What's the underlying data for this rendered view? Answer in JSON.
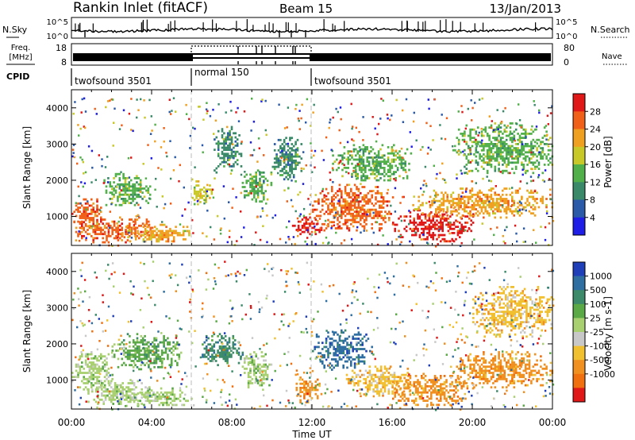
{
  "header": {
    "station": "Rankin Inlet (fitACF)",
    "beam": "Beam 15",
    "date": "13/Jan/2013"
  },
  "strips": {
    "nsky_label": "N.Sky",
    "nsky_ticks": [
      "10^5",
      "10^0"
    ],
    "nsearch_label": "N.Search",
    "nsearch_ticks": [
      "10^5",
      "10^0"
    ],
    "freq_label_line1": "Freq.",
    "freq_label_line2": "[MHz]",
    "freq_ticks": [
      "18",
      "8"
    ],
    "nave_label": "Nave",
    "nave_ticks": [
      "80",
      "0"
    ],
    "cpid_label": "CPID",
    "cpid_segments": [
      {
        "label": "twofsound 3501",
        "start_hour": 0,
        "end_hour": 6
      },
      {
        "label": "normal 150",
        "start_hour": 6,
        "end_hour": 12
      },
      {
        "label": "twofsound 3501",
        "start_hour": 12,
        "end_hour": 24
      }
    ]
  },
  "axes": {
    "ylabel": "Slant Range [km]",
    "yticks": [
      "1000",
      "2000",
      "3000",
      "4000"
    ],
    "xlabel": "Time UT",
    "xticks": [
      "00:00",
      "04:00",
      "08:00",
      "12:00",
      "16:00",
      "20:00",
      "00:00"
    ]
  },
  "colorbars": {
    "power": {
      "label": "Power [dB]",
      "ticks": [
        "4",
        "8",
        "12",
        "16",
        "20",
        "24",
        "28"
      ],
      "colors": [
        "#1e1ee6",
        "#2a5aa8",
        "#3a8a6a",
        "#52b04a",
        "#c8c828",
        "#f0a020",
        "#f06018",
        "#e01818"
      ]
    },
    "velocity": {
      "label": "Velocity [m s-1]",
      "ticks": [
        "1000",
        "500",
        "100",
        "25",
        "-25",
        "-100",
        "-500",
        "-1000"
      ],
      "colors": [
        "#1f3fb8",
        "#2f6ea0",
        "#3c8a6a",
        "#5aa846",
        "#a8d070",
        "#c8c8c8",
        "#f0c030",
        "#f09020",
        "#f07010",
        "#e01818"
      ]
    }
  },
  "chart_data": [
    {
      "type": "heatmap",
      "title": "Power",
      "xlabel": "Time UT",
      "ylabel": "Slant Range [km]",
      "xlim": [
        0,
        24
      ],
      "ylim": [
        200,
        4500
      ],
      "clim": [
        0,
        30
      ],
      "colorbar_label": "Power [dB]",
      "regions": [
        {
          "t": [
            0,
            1.6
          ],
          "r": [
            700,
            1500
          ],
          "value": 24
        },
        {
          "t": [
            0,
            4
          ],
          "r": [
            300,
            1000
          ],
          "value": 26
        },
        {
          "t": [
            1.5,
            4
          ],
          "r": [
            1300,
            2200
          ],
          "value": 14
        },
        {
          "t": [
            2.5,
            6
          ],
          "r": [
            300,
            800
          ],
          "value": 22
        },
        {
          "t": [
            6,
            7
          ],
          "r": [
            1300,
            2000
          ],
          "value": 18
        },
        {
          "t": [
            7,
            8.5
          ],
          "r": [
            2200,
            3500
          ],
          "value": 8
        },
        {
          "t": [
            8.5,
            10
          ],
          "r": [
            1400,
            2300
          ],
          "value": 12
        },
        {
          "t": [
            10,
            11.5
          ],
          "r": [
            2000,
            3200
          ],
          "value": 8
        },
        {
          "t": [
            11,
            12.5
          ],
          "r": [
            500,
            1000
          ],
          "value": 28
        },
        {
          "t": [
            12,
            16
          ],
          "r": [
            600,
            1900
          ],
          "value": 26
        },
        {
          "t": [
            13,
            17
          ],
          "r": [
            2000,
            3000
          ],
          "value": 12
        },
        {
          "t": [
            16,
            20
          ],
          "r": [
            300,
            1200
          ],
          "value": 28
        },
        {
          "t": [
            17,
            24
          ],
          "r": [
            1000,
            1800
          ],
          "value": 22
        },
        {
          "t": [
            19,
            24
          ],
          "r": [
            2200,
            3600
          ],
          "value": 14
        }
      ]
    },
    {
      "type": "heatmap",
      "title": "Velocity",
      "xlabel": "Time UT",
      "ylabel": "Slant Range [km]",
      "xlim": [
        0,
        24
      ],
      "ylim": [
        200,
        4500
      ],
      "clim": [
        -1000,
        1000
      ],
      "colorbar_label": "Velocity [m s-1]",
      "regions": [
        {
          "t": [
            0,
            2
          ],
          "r": [
            700,
            1800
          ],
          "value": 120
        },
        {
          "t": [
            0.8,
            4
          ],
          "r": [
            300,
            1000
          ],
          "value": 10
        },
        {
          "t": [
            2,
            5.5
          ],
          "r": [
            1300,
            2300
          ],
          "value": 300
        },
        {
          "t": [
            3,
            6
          ],
          "r": [
            300,
            800
          ],
          "value": 80
        },
        {
          "t": [
            6.5,
            8.5
          ],
          "r": [
            1400,
            2300
          ],
          "value": 500
        },
        {
          "t": [
            8.5,
            10
          ],
          "r": [
            800,
            1800
          ],
          "value": 150
        },
        {
          "t": [
            11,
            12.5
          ],
          "r": [
            400,
            1100
          ],
          "value": -400
        },
        {
          "t": [
            12,
            15
          ],
          "r": [
            1300,
            2400
          ],
          "value": 600
        },
        {
          "t": [
            13.5,
            17
          ],
          "r": [
            600,
            1400
          ],
          "value": -300
        },
        {
          "t": [
            16,
            20
          ],
          "r": [
            300,
            1200
          ],
          "value": -500
        },
        {
          "t": [
            19,
            24
          ],
          "r": [
            800,
            1800
          ],
          "value": -450
        },
        {
          "t": [
            20,
            24
          ],
          "r": [
            2200,
            3600
          ],
          "value": -200
        }
      ]
    }
  ]
}
